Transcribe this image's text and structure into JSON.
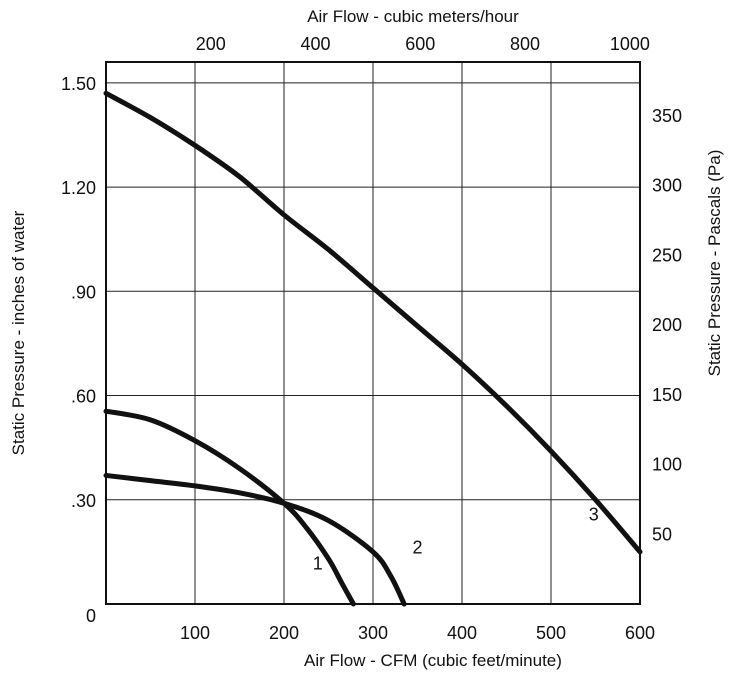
{
  "chart_data": {
    "type": "line",
    "title": "",
    "xlabel": "Air Flow - CFM (cubic feet/minute)",
    "ylabel": "Static Pressure - inches of water",
    "x2label": "Air Flow - cubic meters/hour",
    "y2label": "Static Pressure - Pascals (Pa)",
    "xlim": [
      0,
      600
    ],
    "ylim": [
      0,
      1.56
    ],
    "x_ticks": [
      100,
      200,
      300,
      400,
      500,
      600
    ],
    "x_tick_labels": [
      "100",
      "200",
      "300",
      "400",
      "500",
      "600"
    ],
    "y_ticks": [
      0,
      0.3,
      0.6,
      0.9,
      1.2,
      1.5
    ],
    "y_tick_labels": [
      "0",
      ".30",
      ".60",
      ".90",
      "1.20",
      "1.50"
    ],
    "x2_ticks": [
      200,
      400,
      600,
      800,
      1000
    ],
    "x2_tick_labels": [
      "200",
      "400",
      "600",
      "800",
      "1000"
    ],
    "x2_factor": 1.699,
    "y2_ticks": [
      50,
      100,
      150,
      200,
      250,
      300,
      350
    ],
    "y2_tick_labels": [
      "50",
      "100",
      "150",
      "200",
      "250",
      "300",
      "350"
    ],
    "y2_factor": 249.1,
    "grid": true,
    "series": [
      {
        "name": "1",
        "x": [
          0,
          50,
          100,
          150,
          200,
          225,
          250,
          265,
          278
        ],
        "y": [
          0.555,
          0.53,
          0.47,
          0.39,
          0.29,
          0.22,
          0.13,
          0.06,
          0
        ]
      },
      {
        "name": "2",
        "x": [
          0,
          50,
          100,
          150,
          200,
          250,
          300,
          320,
          335
        ],
        "y": [
          0.37,
          0.355,
          0.34,
          0.32,
          0.29,
          0.24,
          0.15,
          0.08,
          0
        ]
      },
      {
        "name": "3",
        "x": [
          0,
          50,
          100,
          150,
          200,
          250,
          300,
          350,
          400,
          450,
          500,
          550,
          600
        ],
        "y": [
          1.47,
          1.4,
          1.32,
          1.23,
          1.12,
          1.02,
          0.91,
          0.8,
          0.69,
          0.57,
          0.44,
          0.3,
          0.15
        ]
      }
    ]
  }
}
